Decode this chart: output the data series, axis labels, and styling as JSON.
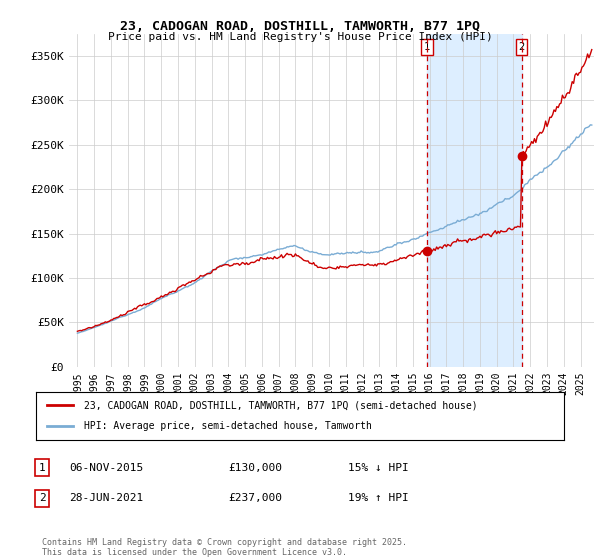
{
  "title": "23, CADOGAN ROAD, DOSTHILL, TAMWORTH, B77 1PQ",
  "subtitle": "Price paid vs. HM Land Registry's House Price Index (HPI)",
  "legend_line1": "23, CADOGAN ROAD, DOSTHILL, TAMWORTH, B77 1PQ (semi-detached house)",
  "legend_line2": "HPI: Average price, semi-detached house, Tamworth",
  "annotation1_label": "1",
  "annotation1_date": "06-NOV-2015",
  "annotation1_price": "£130,000",
  "annotation1_hpi": "15% ↓ HPI",
  "annotation2_label": "2",
  "annotation2_date": "28-JUN-2021",
  "annotation2_price": "£237,000",
  "annotation2_hpi": "19% ↑ HPI",
  "marker1_x": 2015.85,
  "marker1_y": 130000,
  "marker2_x": 2021.49,
  "marker2_y": 237000,
  "vline1_x": 2015.85,
  "vline2_x": 2021.49,
  "shade_color": "#ddeeff",
  "red_color": "#cc0000",
  "blue_color": "#7aacd4",
  "copyright_text": "Contains HM Land Registry data © Crown copyright and database right 2025.\nThis data is licensed under the Open Government Licence v3.0.",
  "ylim": [
    0,
    375000
  ],
  "xlim_start": 1994.5,
  "xlim_end": 2025.8,
  "background_color": "#ffffff",
  "grid_color": "#cccccc",
  "yticks": [
    0,
    50000,
    100000,
    150000,
    200000,
    250000,
    300000,
    350000
  ],
  "ytick_labels": [
    "£0",
    "£50K",
    "£100K",
    "£150K",
    "£200K",
    "£250K",
    "£300K",
    "£350K"
  ]
}
